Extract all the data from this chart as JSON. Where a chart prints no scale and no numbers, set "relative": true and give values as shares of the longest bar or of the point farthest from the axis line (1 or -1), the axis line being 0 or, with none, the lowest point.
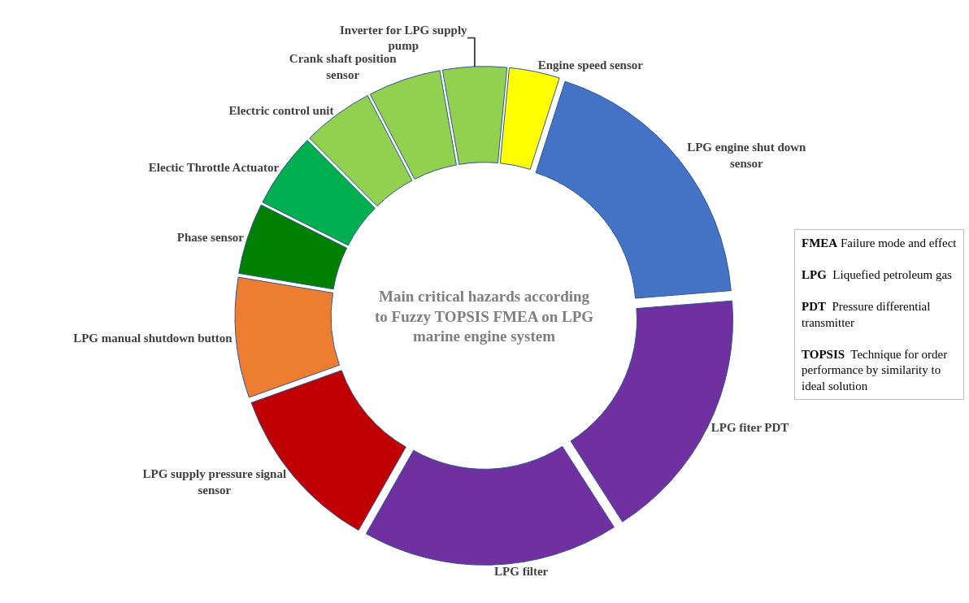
{
  "chart_data": {
    "type": "donut",
    "title": "Main critical hazards according to Fuzzy TOPSIS FMEA on LPG marine engine system",
    "categories": [
      "Engine speed sensor",
      "LPG engine shut down sensor",
      "LPG fiter PDT",
      "LPG filter",
      "LPG supply pressure signal sensor",
      "LPG manual shutdown button",
      "Phase sensor",
      "Electic Throttle Actuator",
      "Electric control unit",
      "Crank shaft position sensor",
      "Inverter for LPG supply pump"
    ],
    "values": [
      3.4,
      18.8,
      17.2,
      17.3,
      11.3,
      8.1,
      4.8,
      5.1,
      4.8,
      4.9,
      4.3
    ],
    "colors": [
      "#ffff00",
      "#4472c4",
      "#7030a0",
      "#7030a0",
      "#c00000",
      "#ed7d31",
      "#008000",
      "#00b050",
      "#92d050",
      "#92d050",
      "#92d050"
    ],
    "relative": true,
    "legend": false,
    "annotations": [
      "FMEA Failure mode and effect",
      "LPG  Liquefied petroleum gas",
      "PDT  Pressure differential transmitter",
      "TOPSIS  Technique for order performance by similarity to ideal solution"
    ]
  }
}
